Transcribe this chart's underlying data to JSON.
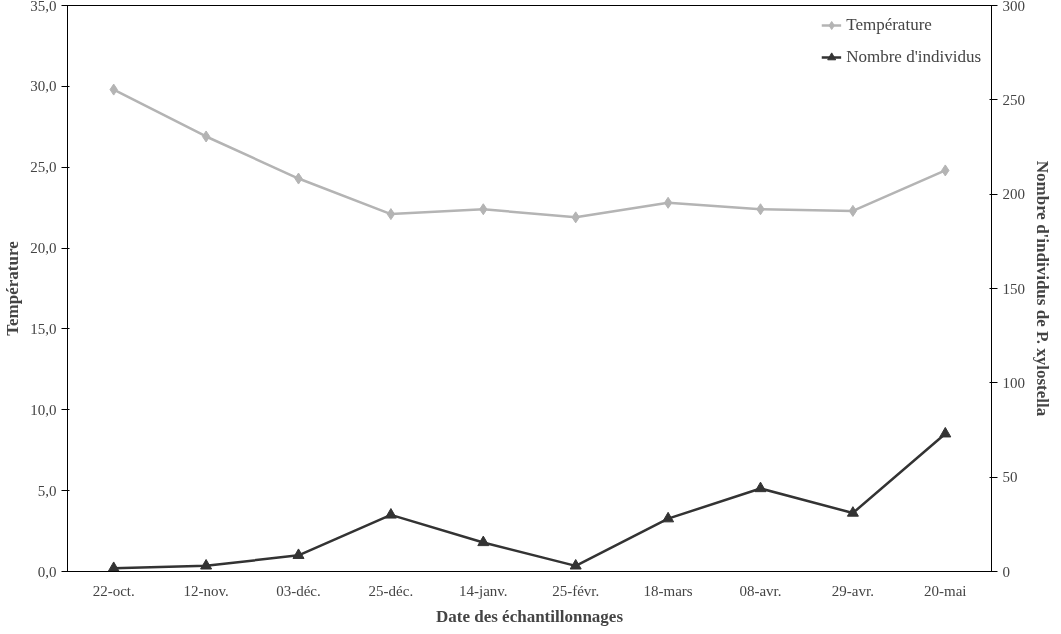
{
  "chart_data": {
    "type": "line",
    "xlabel": "Date des échantillonnages",
    "ylabel": "Température",
    "y2label": "Nombre d'individus de P. xylostella",
    "categories": [
      "22-oct.",
      "12-nov.",
      "03-déc.",
      "25-déc.",
      "14-janv.",
      "25-févr.",
      "18-mars",
      "08-avr.",
      "29-avr.",
      "20-mai"
    ],
    "series": [
      {
        "name": "Température",
        "color": "#b4b4b4",
        "marker": "diamond",
        "values": [
          29.8,
          26.9,
          24.3,
          22.1,
          22.4,
          21.9,
          22.8,
          22.4,
          22.3,
          24.8
        ]
      },
      {
        "name": "Nombre d'individus",
        "color": "#333333",
        "marker": "triangle",
        "axis": "y2",
        "values": [
          1.7,
          3,
          8.6,
          30,
          15.4,
          3,
          28,
          44,
          31,
          73
        ]
      }
    ],
    "ylim": [
      0,
      35
    ],
    "yticks": [
      {
        "value": 0,
        "label": "0,0"
      },
      {
        "value": 5,
        "label": "5,0"
      },
      {
        "value": 10,
        "label": "10,0"
      },
      {
        "value": 15,
        "label": "15,0"
      },
      {
        "value": 20,
        "label": "20,0"
      },
      {
        "value": 25,
        "label": "25,0"
      },
      {
        "value": 30,
        "label": "30,0"
      },
      {
        "value": 35,
        "label": "35,0"
      }
    ],
    "y2lim": [
      0,
      300
    ],
    "y2ticks": [
      0,
      50,
      100,
      150,
      200,
      250,
      300
    ],
    "grid": false,
    "legend": "top right",
    "line_style": "solid"
  }
}
